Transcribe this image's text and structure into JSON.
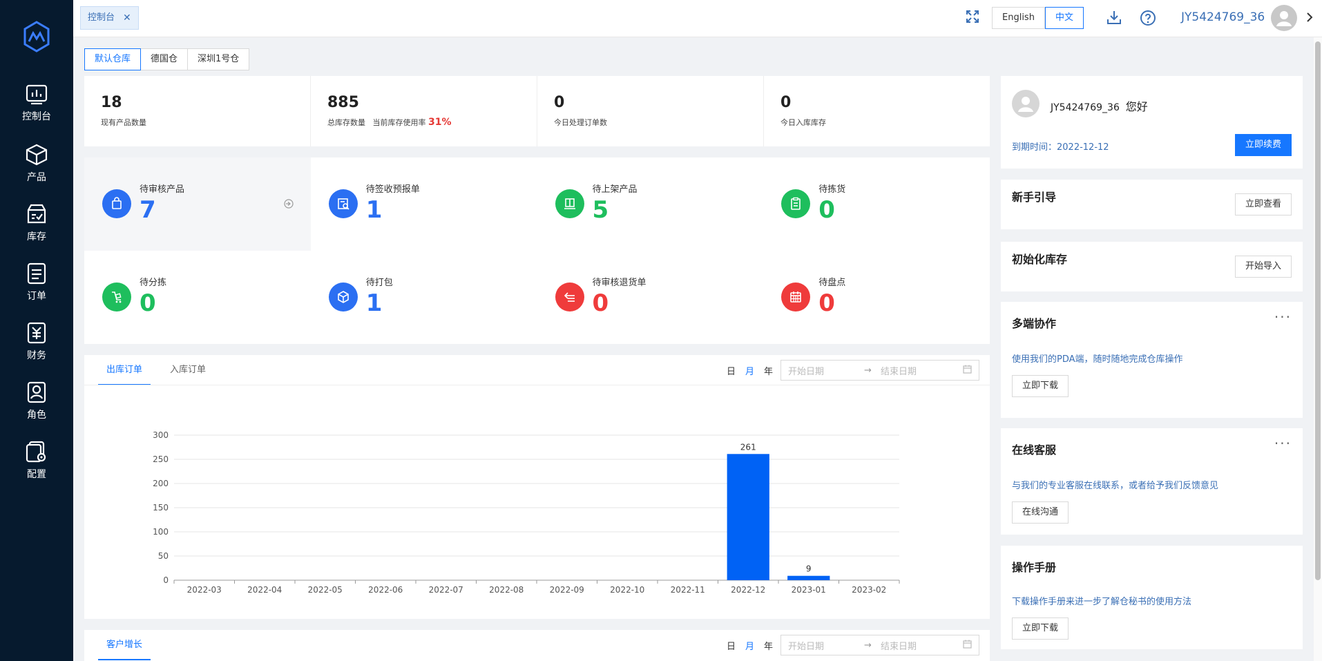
{
  "sidebar": {
    "logo": "logo-icon",
    "items": [
      {
        "label": "控制台",
        "icon": "dashboard-icon"
      },
      {
        "label": "产品",
        "icon": "box-icon"
      },
      {
        "label": "库存",
        "icon": "inventory-icon"
      },
      {
        "label": "订单",
        "icon": "order-icon"
      },
      {
        "label": "财务",
        "icon": "finance-icon"
      },
      {
        "label": "角色",
        "icon": "role-icon"
      },
      {
        "label": "配置",
        "icon": "config-icon"
      }
    ]
  },
  "topbar": {
    "page_tab": "控制台",
    "lang_en": "English",
    "lang_zh": "中文",
    "username": "JY5424769_36"
  },
  "warehouses": [
    "默认仓库",
    "德国仓",
    "深圳1号仓"
  ],
  "stats": [
    {
      "value": "18",
      "label": "现有产品数量"
    },
    {
      "value": "885",
      "label": "总库存数量",
      "extra_label": "当前库存使用率",
      "extra_value": "31%"
    },
    {
      "value": "0",
      "label": "今日处理订单数"
    },
    {
      "value": "0",
      "label": "今日入库库存"
    }
  ],
  "tasks": [
    {
      "label": "待审核产品",
      "value": "7",
      "color": "#2b6ff2"
    },
    {
      "label": "待签收预报单",
      "value": "1",
      "color": "#2b6ff2"
    },
    {
      "label": "待上架产品",
      "value": "5",
      "color": "#1ebe5d"
    },
    {
      "label": "待拣货",
      "value": "0",
      "color": "#1ebe5d"
    },
    {
      "label": "待分拣",
      "value": "0",
      "color": "#1ebe5d"
    },
    {
      "label": "待打包",
      "value": "1",
      "color": "#2b6ff2"
    },
    {
      "label": "待审核退货单",
      "value": "0",
      "color": "#ef3b3b"
    },
    {
      "label": "待盘点",
      "value": "0",
      "color": "#ef3b3b"
    }
  ],
  "chart_panel": {
    "tabs": [
      "出库订单",
      "入库订单"
    ],
    "period": [
      "日",
      "月",
      "年"
    ],
    "start_placeholder": "开始日期",
    "end_placeholder": "结束日期"
  },
  "chart_data": {
    "type": "bar",
    "categories": [
      "2022-03",
      "2022-04",
      "2022-05",
      "2022-06",
      "2022-07",
      "2022-08",
      "2022-09",
      "2022-10",
      "2022-11",
      "2022-12",
      "2023-01",
      "2023-02"
    ],
    "values": [
      0,
      0,
      0,
      0,
      0,
      0,
      0,
      0,
      0,
      261,
      9,
      0
    ],
    "ylim": [
      0,
      300
    ],
    "yticks": [
      0,
      50,
      100,
      150,
      200,
      250,
      300
    ],
    "color": "#0062f5"
  },
  "cust_panel": {
    "tab": "客户增长",
    "period": [
      "日",
      "月",
      "年"
    ],
    "start_placeholder": "开始日期",
    "end_placeholder": "结束日期"
  },
  "right": {
    "greeting_user": "JY5424769_36",
    "greeting": "您好",
    "expiry": "到期时间：2022-12-12",
    "renew": "立即续费",
    "guide_title": "新手引导",
    "guide_btn": "立即查看",
    "init_title": "初始化库存",
    "init_btn": "开始导入",
    "multi_title": "多端协作",
    "multi_desc": "使用我们的PDA端，随时随地完成仓库操作",
    "multi_btn": "立即下载",
    "service_title": "在线客服",
    "service_desc": "与我们的专业客服在线联系，或者给予我们反馈意见",
    "service_btn": "在线沟通",
    "manual_title": "操作手册",
    "manual_desc": "下载操作手册来进一步了解仓秘书的使用方法",
    "manual_btn": "立即下载",
    "dots": "···"
  }
}
